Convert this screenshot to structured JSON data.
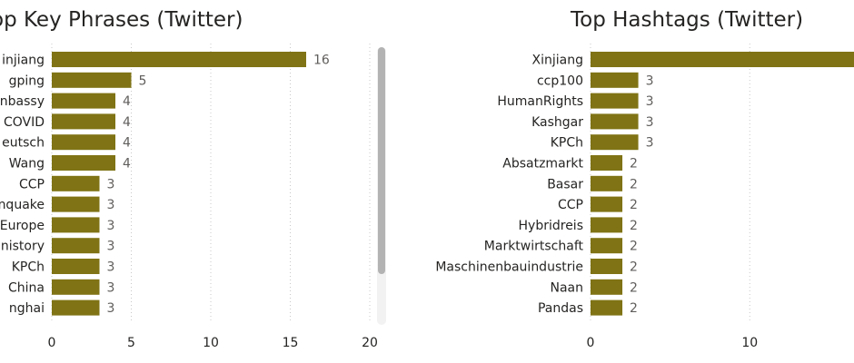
{
  "chart_data": [
    {
      "type": "bar",
      "orientation": "horizontal",
      "title": "op Key Phrases (Twitter)",
      "categories": [
        "injiang",
        "gping",
        "nbassy",
        "COVID",
        "eutsch",
        "Wang",
        "CCP",
        "nquake",
        "Europe",
        "nistory",
        "KPCh",
        "China",
        "nghai"
      ],
      "values": [
        16,
        5,
        4,
        4,
        4,
        4,
        3,
        3,
        3,
        3,
        3,
        3,
        3
      ],
      "xticks": [
        "0",
        "5",
        "10",
        "15",
        "20"
      ],
      "xlim": [
        0,
        20
      ],
      "grid": true,
      "bar_color": "#7f7315"
    },
    {
      "type": "bar",
      "orientation": "horizontal",
      "title": "Top Hashtags (Twitter)",
      "categories": [
        "Xinjiang",
        "ccp100",
        "HumanRights",
        "Kashgar",
        "KPCh",
        "Absatzmarkt",
        "Basar",
        "CCP",
        "Hybridreis",
        "Marktwirtschaft",
        "Maschinenbauindustrie",
        "Naan",
        "Pandas"
      ],
      "values": [
        19,
        3,
        3,
        3,
        3,
        2,
        2,
        2,
        2,
        2,
        2,
        2,
        2
      ],
      "xticks": [
        "0",
        "10"
      ],
      "xlim": [
        0,
        19
      ],
      "grid": true,
      "bar_color": "#7f7315"
    }
  ]
}
